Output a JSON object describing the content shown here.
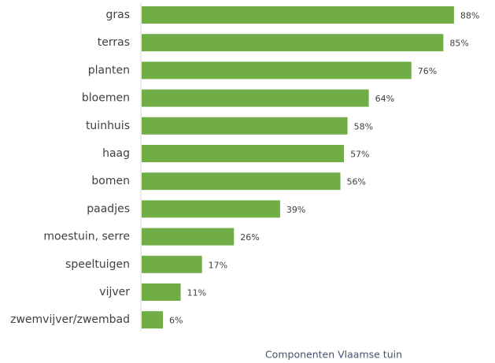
{
  "chart_data": {
    "type": "bar",
    "orientation": "horizontal",
    "categories": [
      "gras",
      "terras",
      "planten",
      "bloemen",
      "tuinhuis",
      "haag",
      "bomen",
      "paadjes",
      "moestuin, serre",
      "speeltuigen",
      "vijver",
      "zwemvijver/zwembad"
    ],
    "values": [
      88,
      85,
      76,
      64,
      58,
      57,
      56,
      39,
      26,
      17,
      11,
      6
    ],
    "value_labels": [
      "88%",
      "85%",
      "76%",
      "64%",
      "58%",
      "57%",
      "56%",
      "39%",
      "26%",
      "17%",
      "11%",
      "6%"
    ],
    "unit": "%",
    "title": "Componenten Vlaamse tuin",
    "title_position": "bottom",
    "xlabel": "",
    "ylabel": "",
    "xlim": [
      0,
      100
    ],
    "grid": false,
    "legend": "none",
    "bar_color": "#70ad47",
    "axis_color": "#d9d9d9",
    "label_color": "#404040",
    "title_color": "#44546a"
  }
}
